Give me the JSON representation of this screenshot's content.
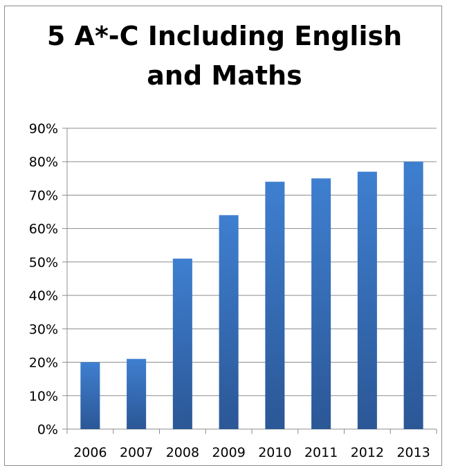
{
  "chart_data": {
    "type": "bar",
    "title": "5 A*-C Including English and Maths",
    "categories": [
      "2006",
      "2007",
      "2008",
      "2009",
      "2010",
      "2011",
      "2012",
      "2013"
    ],
    "values": [
      20,
      21,
      51,
      64,
      74,
      75,
      77,
      80
    ],
    "value_unit": "%",
    "ylim": [
      0,
      90
    ],
    "yticks": [
      0,
      10,
      20,
      30,
      40,
      50,
      60,
      70,
      80,
      90
    ],
    "ytick_labels": [
      "0%",
      "10%",
      "20%",
      "30%",
      "40%",
      "50%",
      "60%",
      "70%",
      "80%",
      "90%"
    ],
    "grid": true,
    "legend": "none",
    "bar_color_top": "#3f7fd0",
    "bar_color_bottom": "#2b5796"
  }
}
